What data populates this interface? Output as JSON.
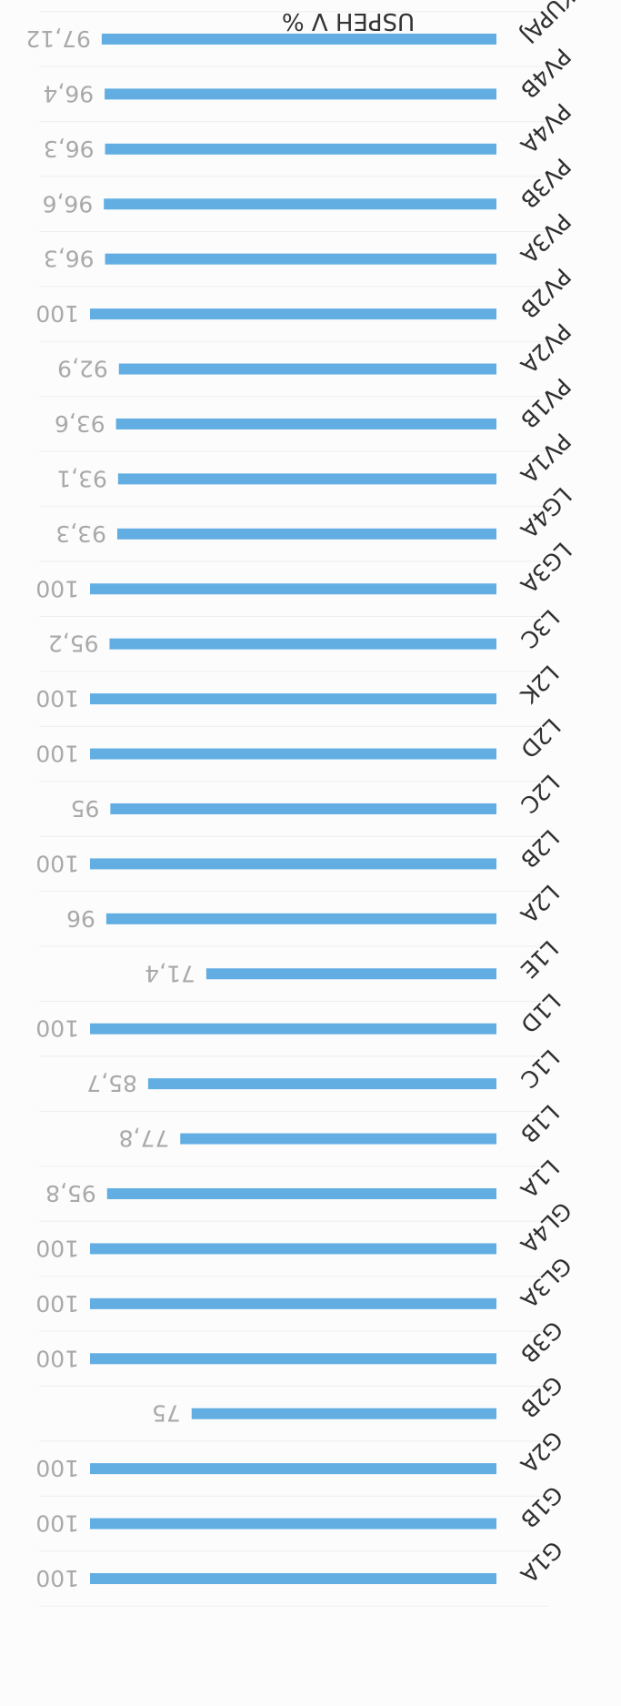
{
  "chart_data": {
    "type": "bar",
    "orientation": "horizontal",
    "rotated_180": true,
    "categories": [
      "G1A",
      "G1B",
      "G2A",
      "G2B",
      "G3B",
      "GL3A",
      "GL4A",
      "L1A",
      "L1B",
      "L1C",
      "L1D",
      "L1E",
      "L2A",
      "L2B",
      "L2C",
      "L2D",
      "L2K",
      "L3C",
      "LG3A",
      "LG4A",
      "PV1A",
      "PV1B",
      "PV2A",
      "PV2B",
      "PV3A",
      "PV3B",
      "PV4A",
      "PV4B",
      "SKUPAJ"
    ],
    "values": [
      100,
      100,
      100,
      75,
      100,
      100,
      100,
      95.8,
      77.8,
      85.7,
      100,
      71.4,
      96,
      100,
      95,
      100,
      100,
      95.2,
      100,
      93.3,
      93.1,
      93.6,
      92.9,
      100,
      96.3,
      96.6,
      96.3,
      96.4,
      97.12
    ],
    "value_labels": [
      "100",
      "100",
      "100",
      "75",
      "100",
      "100",
      "100",
      "95,8",
      "77,8",
      "85,7",
      "100",
      "71,4",
      "96",
      "100",
      "95",
      "100",
      "100",
      "95,2",
      "100",
      "93,3",
      "93,1",
      "93,6",
      "92,9",
      "100",
      "96,3",
      "96,6",
      "96,3",
      "96,4",
      "97,12"
    ],
    "xlabel": "USPEH V %",
    "xlim": [
      0,
      100
    ],
    "grid": true,
    "colors": {
      "bar": "#62aee3",
      "axis_text": "#2f2f2f",
      "value_text": "#a9a9a9",
      "grid": "#eeeeee"
    }
  }
}
